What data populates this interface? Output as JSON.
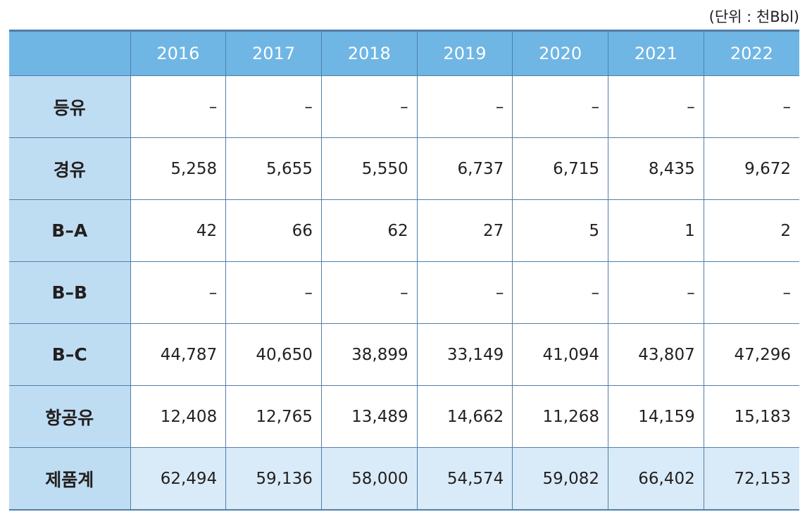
{
  "unit_label": "(단위 : 천Bbl)",
  "table": {
    "headers": [
      "",
      "2016",
      "2017",
      "2018",
      "2019",
      "2020",
      "2021",
      "2022"
    ],
    "rows": [
      {
        "label": "등유",
        "cells": [
          "–",
          "–",
          "–",
          "–",
          "–",
          "–",
          "–"
        ]
      },
      {
        "label": "경유",
        "cells": [
          "5,258",
          "5,655",
          "5,550",
          "6,737",
          "6,715",
          "8,435",
          "9,672"
        ]
      },
      {
        "label": "B–A",
        "cells": [
          "42",
          "66",
          "62",
          "27",
          "5",
          "1",
          "2"
        ]
      },
      {
        "label": "B–B",
        "cells": [
          "–",
          "–",
          "–",
          "–",
          "–",
          "–",
          "–"
        ]
      },
      {
        "label": "B–C",
        "cells": [
          "44,787",
          "40,650",
          "38,899",
          "33,149",
          "41,094",
          "43,807",
          "47,296"
        ]
      },
      {
        "label": "항공유",
        "cells": [
          "12,408",
          "12,765",
          "13,489",
          "14,662",
          "11,268",
          "14,159",
          "15,183"
        ]
      },
      {
        "label": "제품계",
        "cells": [
          "62,494",
          "59,136",
          "58,000",
          "54,574",
          "59,082",
          "66,402",
          "72,153"
        ]
      }
    ]
  }
}
